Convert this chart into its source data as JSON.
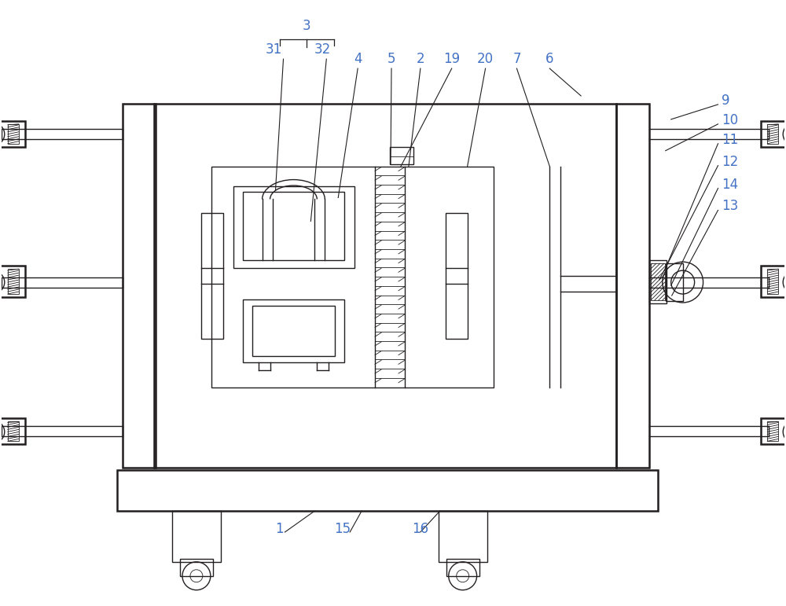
{
  "bg_color": "#ffffff",
  "line_color": "#231f20",
  "label_color": "#4472c4",
  "lw_main": 1.8,
  "lw_thin": 1.0,
  "lw_hair": 0.6,
  "fig_width": 10.0,
  "fig_height": 7.71
}
